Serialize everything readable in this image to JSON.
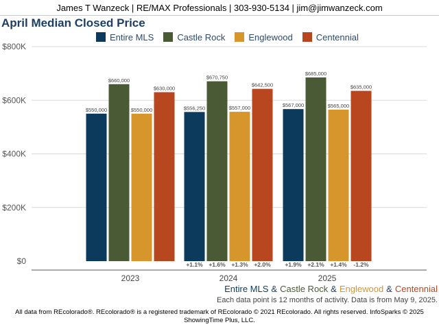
{
  "header": {
    "text": "James T Wanzeck | RE/MAX Professionals | 303-930-5134 | jim@jimwanzeck.com"
  },
  "chart_data": {
    "type": "bar",
    "title": "April Median Closed Price",
    "categories": [
      "2023",
      "2024",
      "2025"
    ],
    "series": [
      {
        "name": "Entire MLS",
        "color": "#0b3a5c",
        "values": [
          550000,
          556250,
          567000
        ],
        "labels": [
          "$550,000",
          "$556,250",
          "$567,000"
        ],
        "changes": [
          "",
          "+1.1%",
          "+1.9%"
        ]
      },
      {
        "name": "Castle Rock",
        "color": "#4a5a35",
        "values": [
          660000,
          670750,
          685000
        ],
        "labels": [
          "$660,000",
          "$670,750",
          "$685,000"
        ],
        "changes": [
          "",
          "+1.6%",
          "+2.1%"
        ]
      },
      {
        "name": "Englewood",
        "color": "#d7962c",
        "values": [
          550000,
          557000,
          565000
        ],
        "labels": [
          "$550,000",
          "$557,000",
          "$565,000"
        ],
        "changes": [
          "",
          "+1.3%",
          "+1.4%"
        ]
      },
      {
        "name": "Centennial",
        "color": "#b8461e",
        "values": [
          630000,
          642500,
          635000
        ],
        "labels": [
          "$630,000",
          "$642,500",
          "$635,000"
        ],
        "changes": [
          "",
          "+2.0%",
          "-1.2%"
        ]
      }
    ],
    "yticks": [
      0,
      200000,
      400000,
      600000,
      800000
    ],
    "ytick_labels": [
      "$0",
      "$200K",
      "$400K",
      "$600K",
      "$800K"
    ],
    "ylim": [
      0,
      800000
    ],
    "grid": true,
    "legend_position": "top"
  },
  "subtitle_amp": "&",
  "note": "Each data point is 12 months of activity. Data is from May 9, 2025.",
  "footer": {
    "line1": "All data from REcolorado®. REcolorado® is a registered trademark of REcolorado © 2021 REcolorado. All rights reserved. InfoSparks © 2025",
    "line2": "ShowingTime Plus, LLC."
  }
}
